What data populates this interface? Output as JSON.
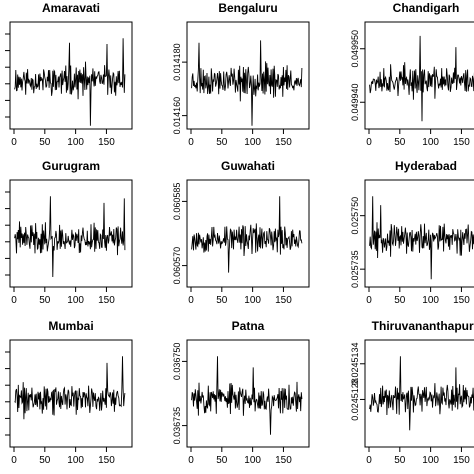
{
  "chart_data": [
    {
      "type": "line",
      "title": "Amaravati",
      "xlim": [
        0,
        185
      ],
      "x_ticks": [
        "0",
        "50",
        "100",
        "150"
      ],
      "y_ticks": [],
      "seed": 11,
      "spikes": [
        [
          89,
          0.85
        ],
        [
          123,
          -1.0
        ],
        [
          150,
          0.82
        ],
        [
          176,
          0.95
        ]
      ]
    },
    {
      "type": "line",
      "title": "Bengaluru",
      "xlim": [
        0,
        185
      ],
      "ylim": [
        0.014155,
        0.014195
      ],
      "x_ticks": [
        "0",
        "50",
        "100",
        "150"
      ],
      "y_ticks": [
        {
          "value": 0.01416,
          "label": "0.014160"
        },
        {
          "value": 0.01418,
          "label": "0.014180"
        }
      ],
      "seed": 23,
      "spikes": [
        [
          12,
          0.85
        ],
        [
          98,
          -1.0
        ],
        [
          112,
          0.9
        ]
      ]
    },
    {
      "type": "line",
      "title": "Chandigarh",
      "xlim": [
        0,
        185
      ],
      "ylim": [
        0.049935,
        0.049955
      ],
      "x_ticks": [
        "0",
        "50",
        "100",
        "150"
      ],
      "y_ticks": [
        {
          "value": 0.04994,
          "label": "0.049940"
        },
        {
          "value": 0.04995,
          "label": "0.049950"
        }
      ],
      "seed": 37,
      "spikes": [
        [
          82,
          1.0
        ],
        [
          85,
          -0.9
        ],
        [
          140,
          0.75
        ]
      ]
    },
    {
      "type": "line",
      "title": "Gurugram",
      "xlim": [
        0,
        185
      ],
      "x_ticks": [
        "0",
        "50",
        "100",
        "150"
      ],
      "y_ticks": [],
      "seed": 41,
      "spikes": [
        [
          58,
          0.95
        ],
        [
          62,
          -0.85
        ],
        [
          145,
          0.8
        ],
        [
          178,
          0.9
        ]
      ]
    },
    {
      "type": "line",
      "title": "Guwahati",
      "xlim": [
        0,
        185
      ],
      "ylim": [
        0.060565,
        0.06059
      ],
      "x_ticks": [
        "0",
        "50",
        "100",
        "150"
      ],
      "y_ticks": [
        {
          "value": 0.06057,
          "label": "0.060570"
        },
        {
          "value": 0.060585,
          "label": "0.060585"
        }
      ],
      "seed": 53,
      "spikes": [
        [
          143,
          0.95
        ],
        [
          60,
          -0.75
        ]
      ]
    },
    {
      "type": "line",
      "title": "Hyderabad",
      "xlim": [
        0,
        185
      ],
      "ylim": [
        0.02573,
        0.02576
      ],
      "x_ticks": [
        "0",
        "50",
        "100",
        "150"
      ],
      "y_ticks": [
        {
          "value": 0.025735,
          "label": "0.025735"
        },
        {
          "value": 0.02575,
          "label": "0.025750"
        }
      ],
      "seed": 67,
      "spikes": [
        [
          5,
          0.95
        ],
        [
          100,
          -0.9
        ],
        [
          18,
          0.75
        ]
      ]
    },
    {
      "type": "line",
      "title": "Mumbai",
      "xlim": [
        0,
        185
      ],
      "x_ticks": [
        "0",
        "50",
        "100",
        "150"
      ],
      "y_ticks": [],
      "seed": 71,
      "spikes": [
        [
          150,
          0.8
        ],
        [
          175,
          0.95
        ],
        [
          180,
          -0.95
        ]
      ]
    },
    {
      "type": "line",
      "title": "Patna",
      "xlim": [
        0,
        185
      ],
      "ylim": [
        0.03673,
        0.036755
      ],
      "x_ticks": [
        "0",
        "50",
        "100",
        "150"
      ],
      "y_ticks": [
        {
          "value": 0.036735,
          "label": "0.036735"
        },
        {
          "value": 0.03675,
          "label": "0.036750"
        }
      ],
      "seed": 83,
      "spikes": [
        [
          42,
          0.95
        ],
        [
          100,
          0.7
        ],
        [
          128,
          -0.8
        ]
      ]
    },
    {
      "type": "line",
      "title": "Thiruvananthapura",
      "xlim": [
        0,
        185
      ],
      "ylim": [
        0.024512,
        0.0245138
      ],
      "x_ticks": [
        "0",
        "50",
        "100",
        "150"
      ],
      "y_ticks": [
        {
          "value": 0.0245128,
          "label": "0.0245128"
        },
        {
          "value": 0.0245134,
          "label": "0.0245134"
        }
      ],
      "seed": 97,
      "spikes": [
        [
          50,
          0.95
        ],
        [
          140,
          0.7
        ],
        [
          65,
          -0.7
        ]
      ]
    }
  ]
}
